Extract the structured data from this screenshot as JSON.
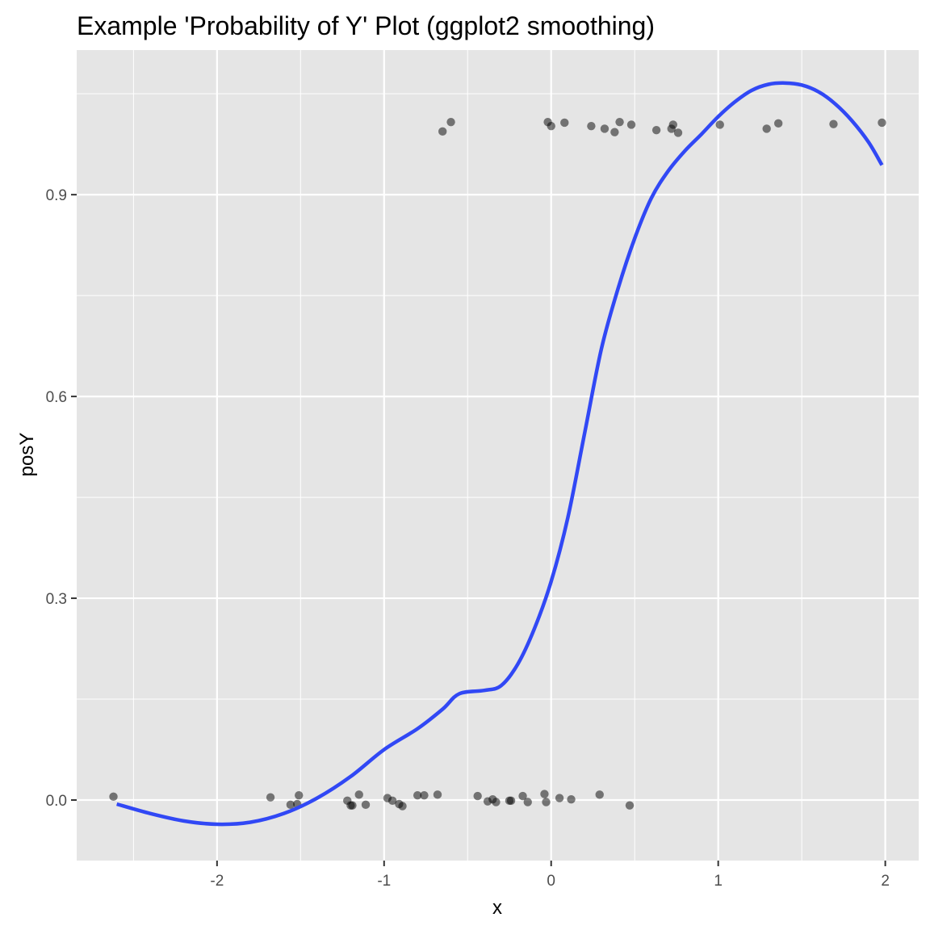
{
  "chart_data": {
    "type": "scatter",
    "title": "Example 'Probability of Y' Plot (ggplot2 smoothing)",
    "xlabel": "x",
    "ylabel": "posY",
    "xlim": [
      -2.84,
      2.2
    ],
    "ylim": [
      -0.09,
      1.115
    ],
    "x_ticks": [
      -2,
      -1,
      0,
      1,
      2
    ],
    "x_tick_labels": [
      "-2",
      "-1",
      "0",
      "1",
      "2"
    ],
    "y_ticks": [
      0.0,
      0.3,
      0.6,
      0.9
    ],
    "y_tick_labels": [
      "0.0",
      "0.3",
      "0.6",
      "0.9"
    ],
    "grid": true,
    "panel_background": "#e5e5e5",
    "grid_color": "#ffffff",
    "point_color": "#000000",
    "point_alpha": 0.5,
    "smooth_color": "#3148f5",
    "points": [
      {
        "x": -2.62,
        "y": 0.005
      },
      {
        "x": -1.68,
        "y": 0.004
      },
      {
        "x": -1.56,
        "y": -0.007
      },
      {
        "x": -1.52,
        "y": -0.006
      },
      {
        "x": -1.51,
        "y": 0.007
      },
      {
        "x": -1.22,
        "y": -0.001
      },
      {
        "x": -1.2,
        "y": -0.008
      },
      {
        "x": -1.19,
        "y": -0.008
      },
      {
        "x": -1.15,
        "y": 0.008
      },
      {
        "x": -1.11,
        "y": -0.007
      },
      {
        "x": -0.98,
        "y": 0.003
      },
      {
        "x": -0.95,
        "y": -0.001
      },
      {
        "x": -0.91,
        "y": -0.006
      },
      {
        "x": -0.89,
        "y": -0.009
      },
      {
        "x": -0.8,
        "y": 0.007
      },
      {
        "x": -0.76,
        "y": 0.007
      },
      {
        "x": -0.68,
        "y": 0.008
      },
      {
        "x": -0.44,
        "y": 0.006
      },
      {
        "x": -0.38,
        "y": -0.002
      },
      {
        "x": -0.35,
        "y": 0.001
      },
      {
        "x": -0.33,
        "y": -0.003
      },
      {
        "x": -0.25,
        "y": -0.001
      },
      {
        "x": -0.24,
        "y": -0.001
      },
      {
        "x": -0.17,
        "y": 0.006
      },
      {
        "x": -0.14,
        "y": -0.003
      },
      {
        "x": -0.04,
        "y": 0.009
      },
      {
        "x": -0.03,
        "y": -0.003
      },
      {
        "x": 0.05,
        "y": 0.003
      },
      {
        "x": 0.12,
        "y": 0.001
      },
      {
        "x": 0.29,
        "y": 0.008
      },
      {
        "x": 0.47,
        "y": -0.008
      },
      {
        "x": -0.65,
        "y": 0.994
      },
      {
        "x": -0.6,
        "y": 1.008
      },
      {
        "x": -0.02,
        "y": 1.008
      },
      {
        "x": 0.0,
        "y": 1.002
      },
      {
        "x": 0.08,
        "y": 1.007
      },
      {
        "x": 0.24,
        "y": 1.002
      },
      {
        "x": 0.32,
        "y": 0.998
      },
      {
        "x": 0.38,
        "y": 0.993
      },
      {
        "x": 0.41,
        "y": 1.008
      },
      {
        "x": 0.48,
        "y": 1.004
      },
      {
        "x": 0.63,
        "y": 0.996
      },
      {
        "x": 0.72,
        "y": 0.998
      },
      {
        "x": 0.73,
        "y": 1.004
      },
      {
        "x": 0.76,
        "y": 0.992
      },
      {
        "x": 1.01,
        "y": 1.004
      },
      {
        "x": 1.29,
        "y": 0.998
      },
      {
        "x": 1.36,
        "y": 1.006
      },
      {
        "x": 1.69,
        "y": 1.005
      },
      {
        "x": 1.98,
        "y": 1.007
      }
    ],
    "smooth_line": [
      {
        "x": -2.6,
        "y": -0.006
      },
      {
        "x": -2.4,
        "y": -0.02
      },
      {
        "x": -2.2,
        "y": -0.031
      },
      {
        "x": -2.0,
        "y": -0.036
      },
      {
        "x": -1.8,
        "y": -0.033
      },
      {
        "x": -1.6,
        "y": -0.02
      },
      {
        "x": -1.4,
        "y": 0.003
      },
      {
        "x": -1.2,
        "y": 0.035
      },
      {
        "x": -1.0,
        "y": 0.075
      },
      {
        "x": -0.8,
        "y": 0.106
      },
      {
        "x": -0.65,
        "y": 0.135
      },
      {
        "x": -0.55,
        "y": 0.158
      },
      {
        "x": -0.4,
        "y": 0.163
      },
      {
        "x": -0.3,
        "y": 0.17
      },
      {
        "x": -0.2,
        "y": 0.202
      },
      {
        "x": -0.1,
        "y": 0.255
      },
      {
        "x": 0.0,
        "y": 0.325
      },
      {
        "x": 0.1,
        "y": 0.42
      },
      {
        "x": 0.2,
        "y": 0.545
      },
      {
        "x": 0.3,
        "y": 0.67
      },
      {
        "x": 0.4,
        "y": 0.76
      },
      {
        "x": 0.5,
        "y": 0.835
      },
      {
        "x": 0.6,
        "y": 0.895
      },
      {
        "x": 0.7,
        "y": 0.935
      },
      {
        "x": 0.8,
        "y": 0.965
      },
      {
        "x": 0.9,
        "y": 0.99
      },
      {
        "x": 1.0,
        "y": 1.016
      },
      {
        "x": 1.1,
        "y": 1.038
      },
      {
        "x": 1.2,
        "y": 1.055
      },
      {
        "x": 1.3,
        "y": 1.064
      },
      {
        "x": 1.4,
        "y": 1.066
      },
      {
        "x": 1.5,
        "y": 1.063
      },
      {
        "x": 1.6,
        "y": 1.053
      },
      {
        "x": 1.7,
        "y": 1.035
      },
      {
        "x": 1.8,
        "y": 1.01
      },
      {
        "x": 1.9,
        "y": 0.978
      },
      {
        "x": 1.98,
        "y": 0.944
      }
    ]
  }
}
